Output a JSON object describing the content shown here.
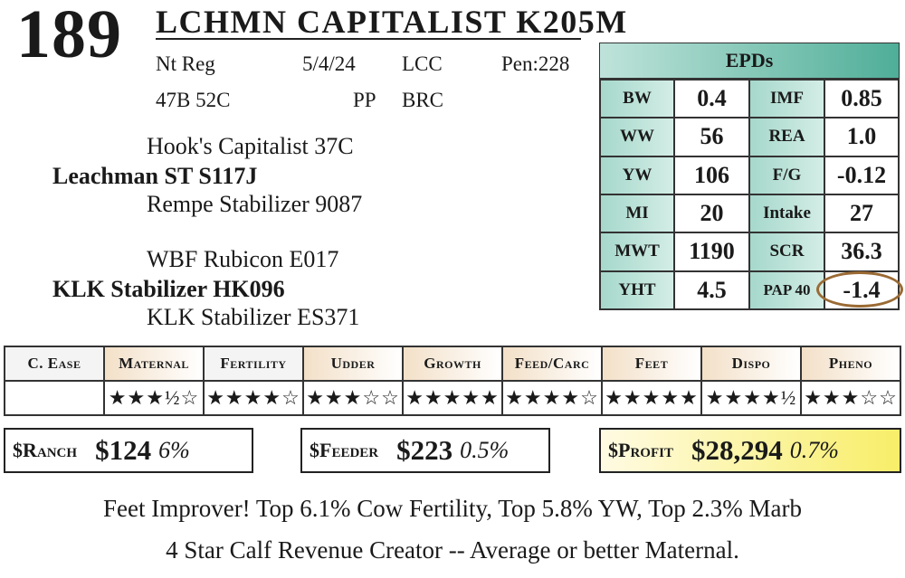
{
  "lot_number": "189",
  "animal_name": "LCHMN CAPITALIST K205M",
  "info": {
    "reg": "Nt Reg",
    "date": "5/4/24",
    "breeder": "LCC",
    "pen": "Pen:228",
    "tattoo": "47B 52C",
    "polled": "PP",
    "brand": "BRC"
  },
  "pedigree": {
    "sire_sire": "Hook's Capitalist 37C",
    "sire": "Leachman ST S117J",
    "sire_dam": "Rempe Stabilizer 9087",
    "dam_sire": "WBF Rubicon E017",
    "dam": "KLK Stabilizer HK096",
    "dam_dam": "KLK Stabilizer ES371"
  },
  "epds": {
    "title": "EPDs",
    "rows": [
      {
        "l1": "BW",
        "v1": "0.4",
        "l2": "IMF",
        "v2": "0.85"
      },
      {
        "l1": "WW",
        "v1": "56",
        "l2": "REA",
        "v2": "1.0"
      },
      {
        "l1": "YW",
        "v1": "106",
        "l2": "F/G",
        "v2": "-0.12"
      },
      {
        "l1": "MI",
        "v1": "20",
        "l2": "Intake",
        "v2": "27"
      },
      {
        "l1": "MWT",
        "v1": "1190",
        "l2": "SCR",
        "v2": "36.3"
      },
      {
        "l1": "YHT",
        "v1": "4.5",
        "l2": "PAP 40",
        "v2": "-1.4"
      }
    ],
    "highlight_color": "#9a6a33"
  },
  "ratings": {
    "headers": [
      "C. Ease",
      "Maternal",
      "Fertility",
      "Udder",
      "Growth",
      "Feed/Carc",
      "Feet",
      "Dispo",
      "Pheno"
    ],
    "stars": [
      "",
      "★★★½☆",
      "★★★★☆",
      "★★★☆☆",
      "★★★★★",
      "★★★★☆",
      "★★★★★",
      "★★★★½",
      "★★★☆☆"
    ]
  },
  "indexes": {
    "ranch": {
      "label": "$Ranch",
      "amount": "$124",
      "pct": "6%"
    },
    "feeder": {
      "label": "$Feeder",
      "amount": "$223",
      "pct": "0.5%"
    },
    "profit": {
      "label": "$Profit",
      "amount": "$28,294",
      "pct": "0.7%"
    }
  },
  "notes": {
    "line1": "Feet Improver! Top 6.1% Cow Fertility, Top 5.8% YW, Top 2.3% Marb",
    "line2": "4 Star Calf Revenue Creator -- Average or better Maternal."
  },
  "colors": {
    "epd_teal": "#4fae98",
    "epd_light": "#a6d8cb",
    "header_tan": "#f3e0c8",
    "profit_yellow": "#f8ee69"
  }
}
